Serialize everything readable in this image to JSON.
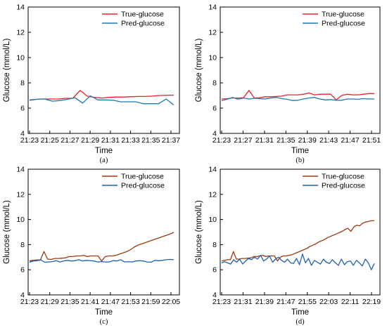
{
  "chart_data": [
    {
      "id": "a",
      "type": "line",
      "caption": "(a)",
      "xlabel": "Time",
      "ylabel": "Glucose (mmol/L)",
      "ylim": [
        4,
        14
      ],
      "yticks": [
        "4",
        "6",
        "8",
        "10",
        "12",
        "14"
      ],
      "xticks": [
        "21:23",
        "21:25",
        "21:27",
        "21:29",
        "21:31",
        "21:33",
        "21:35",
        "21:37"
      ],
      "legend": "top-right",
      "series": [
        {
          "name": "True-glucose",
          "color": "#e8202a",
          "values": [
            6.65,
            6.7,
            6.72,
            6.72,
            6.72,
            6.78,
            6.78,
            7.4,
            6.95,
            6.85,
            6.8,
            6.85,
            6.88,
            6.88,
            6.9,
            6.92,
            6.92,
            6.95,
            7.0,
            7.02,
            7.02
          ]
        },
        {
          "name": "Pred-glucose",
          "color": "#1f78b4",
          "values": [
            6.62,
            6.7,
            6.72,
            6.55,
            6.6,
            6.7,
            6.82,
            6.4,
            6.98,
            6.65,
            6.65,
            6.62,
            6.5,
            6.5,
            6.5,
            6.35,
            6.35,
            6.35,
            6.72,
            6.25
          ]
        }
      ]
    },
    {
      "id": "b",
      "type": "line",
      "caption": "(b)",
      "xlabel": "Time",
      "ylabel": "Glucose (mmol/L)",
      "ylim": [
        4,
        14
      ],
      "yticks": [
        "4",
        "6",
        "8",
        "10",
        "12",
        "14"
      ],
      "xticks": [
        "21:23",
        "21:27",
        "21:31",
        "21:35",
        "21:39",
        "21:43",
        "21:47",
        "21:51"
      ],
      "legend": "top-right",
      "series": [
        {
          "name": "True-glucose",
          "color": "#e8202a",
          "values": [
            6.72,
            6.75,
            6.8,
            6.8,
            6.82,
            7.4,
            6.8,
            6.82,
            6.9,
            6.9,
            6.92,
            6.95,
            7.05,
            7.05,
            7.05,
            7.1,
            7.2,
            7.05,
            7.1,
            7.1,
            7.1,
            6.65,
            7.0,
            7.1,
            7.05,
            7.05,
            7.1,
            7.15,
            7.15
          ]
        },
        {
          "name": "Pred-glucose",
          "color": "#1f78b4",
          "values": [
            6.6,
            6.7,
            6.85,
            6.7,
            6.8,
            6.72,
            6.78,
            6.75,
            6.72,
            6.8,
            6.85,
            6.75,
            6.7,
            6.6,
            6.62,
            6.72,
            6.8,
            6.85,
            6.72,
            6.65,
            6.68,
            6.62,
            6.62,
            6.72,
            6.72,
            6.7,
            6.75,
            6.72,
            6.72
          ]
        }
      ]
    },
    {
      "id": "c",
      "type": "line",
      "caption": "(c)",
      "xlabel": "Time",
      "ylabel": "Glucose (mmol/L)",
      "ylim": [
        4,
        14
      ],
      "yticks": [
        "4",
        "6",
        "8",
        "10",
        "12",
        "14"
      ],
      "xticks": [
        "21:23",
        "21:29",
        "21:35",
        "21:41",
        "21:47",
        "21:53",
        "21:59",
        "22:05"
      ],
      "legend": "top-right",
      "series": [
        {
          "name": "True-glucose",
          "color": "#9b3a13",
          "values": [
            6.7,
            6.75,
            6.78,
            6.78,
            7.45,
            6.85,
            6.82,
            6.9,
            6.9,
            6.92,
            6.95,
            7.05,
            7.05,
            7.1,
            7.1,
            7.15,
            7.05,
            7.1,
            7.1,
            7.1,
            6.7,
            7.05,
            7.1,
            7.1,
            7.15,
            7.25,
            7.35,
            7.45,
            7.6,
            7.8,
            7.95,
            8.05,
            8.15,
            8.25,
            8.35,
            8.45,
            8.55,
            8.65,
            8.75,
            8.85,
            8.98
          ]
        },
        {
          "name": "Pred-glucose",
          "color": "#1f5fb4",
          "values": [
            6.6,
            6.7,
            6.72,
            6.78,
            6.6,
            6.62,
            6.65,
            6.72,
            6.62,
            6.7,
            6.75,
            6.7,
            6.72,
            6.8,
            6.7,
            6.75,
            6.72,
            6.7,
            6.62,
            6.65,
            6.62,
            6.62,
            6.72,
            6.7,
            6.8,
            6.62,
            6.65,
            6.62,
            6.7,
            6.72,
            6.7,
            6.62,
            6.6,
            6.75,
            6.72,
            6.75,
            6.8,
            6.82,
            6.8
          ]
        }
      ]
    },
    {
      "id": "d",
      "type": "line",
      "caption": "(d)",
      "xlabel": "Time",
      "ylabel": "Glucose (mmol/L)",
      "ylim": [
        4,
        14
      ],
      "yticks": [
        "4",
        "6",
        "8",
        "10",
        "12",
        "14"
      ],
      "xticks": [
        "21:23",
        "21:31",
        "21:39",
        "21:47",
        "21:55",
        "22:03",
        "22:11",
        "22:19"
      ],
      "legend": "top-right",
      "series": [
        {
          "name": "True-glucose",
          "color": "#9b3a13",
          "values": [
            6.7,
            6.75,
            6.8,
            6.8,
            7.45,
            6.85,
            6.85,
            6.9,
            6.9,
            6.92,
            6.95,
            7.05,
            7.05,
            7.1,
            7.15,
            7.05,
            7.1,
            7.1,
            7.1,
            6.7,
            7.0,
            7.1,
            7.1,
            7.15,
            7.2,
            7.3,
            7.4,
            7.5,
            7.6,
            7.7,
            7.85,
            7.95,
            8.05,
            8.2,
            8.3,
            8.4,
            8.55,
            8.65,
            8.75,
            8.85,
            8.95,
            9.05,
            9.2,
            9.3,
            9.05,
            9.4,
            9.55,
            9.5,
            9.7,
            9.8,
            9.85,
            9.9,
            9.9
          ]
        },
        {
          "name": "Pred-glucose",
          "color": "#1f5fb4",
          "values": [
            6.55,
            6.65,
            6.55,
            6.45,
            6.8,
            6.6,
            6.85,
            6.45,
            6.7,
            6.9,
            6.8,
            7.0,
            6.85,
            7.15,
            6.7,
            6.85,
            7.1,
            6.6,
            6.85,
            7.0,
            6.75,
            6.6,
            6.85,
            6.55,
            6.5,
            6.9,
            6.4,
            7.25,
            6.55,
            6.9,
            6.35,
            6.75,
            6.6,
            6.45,
            6.85,
            6.6,
            6.5,
            6.8,
            6.55,
            6.35,
            6.85,
            6.4,
            6.65,
            6.7,
            6.35,
            6.75,
            6.55,
            6.3,
            6.85,
            6.55,
            6.0,
            6.5
          ]
        }
      ]
    }
  ]
}
